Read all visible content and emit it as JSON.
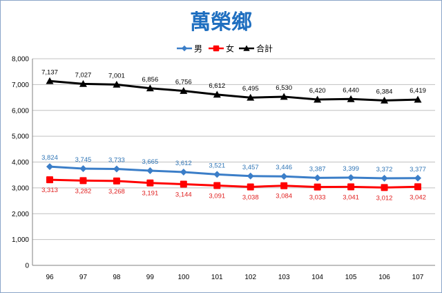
{
  "chart_data": {
    "type": "line",
    "title": "萬榮鄉",
    "categories": [
      "96",
      "97",
      "98",
      "99",
      "100",
      "101",
      "102",
      "103",
      "104",
      "105",
      "106",
      "107"
    ],
    "series": [
      {
        "name": "男",
        "color": "#3b7ec8",
        "label_color": "#2e74b5",
        "marker": "diamond",
        "values": [
          3824,
          3745,
          3733,
          3665,
          3612,
          3521,
          3457,
          3446,
          3387,
          3399,
          3372,
          3377
        ],
        "labels": [
          "3,824",
          "3,745",
          "3,733",
          "3,665",
          "3,612",
          "3,521",
          "3,457",
          "3,446",
          "3,387",
          "3,399",
          "3,372",
          "3,377"
        ]
      },
      {
        "name": "女",
        "color": "#ff0000",
        "label_color": "#e02020",
        "marker": "square",
        "values": [
          3313,
          3282,
          3268,
          3191,
          3144,
          3091,
          3038,
          3084,
          3033,
          3041,
          3012,
          3042
        ],
        "labels": [
          "3,313",
          "3,282",
          "3,268",
          "3,191",
          "3,144",
          "3,091",
          "3,038",
          "3,084",
          "3,033",
          "3,041",
          "3,012",
          "3,042"
        ]
      },
      {
        "name": "合計",
        "color": "#000000",
        "label_color": "#000000",
        "marker": "triangle",
        "values": [
          7137,
          7027,
          7001,
          6856,
          6756,
          6612,
          6495,
          6530,
          6420,
          6440,
          6384,
          6419
        ],
        "labels": [
          "7,137",
          "7,027",
          "7,001",
          "6,856",
          "6,756",
          "6,612",
          "6,495",
          "6,530",
          "6,420",
          "6,440",
          "6,384",
          "6,419"
        ]
      }
    ],
    "ylim": [
      0,
      8000
    ],
    "yticks": [
      0,
      1000,
      2000,
      3000,
      4000,
      5000,
      6000,
      7000,
      8000
    ],
    "ytick_labels": [
      "0",
      "1,000",
      "2,000",
      "3,000",
      "4,000",
      "5,000",
      "6,000",
      "7,000",
      "8,000"
    ],
    "grid": "horizontal",
    "legend": "top-center"
  }
}
